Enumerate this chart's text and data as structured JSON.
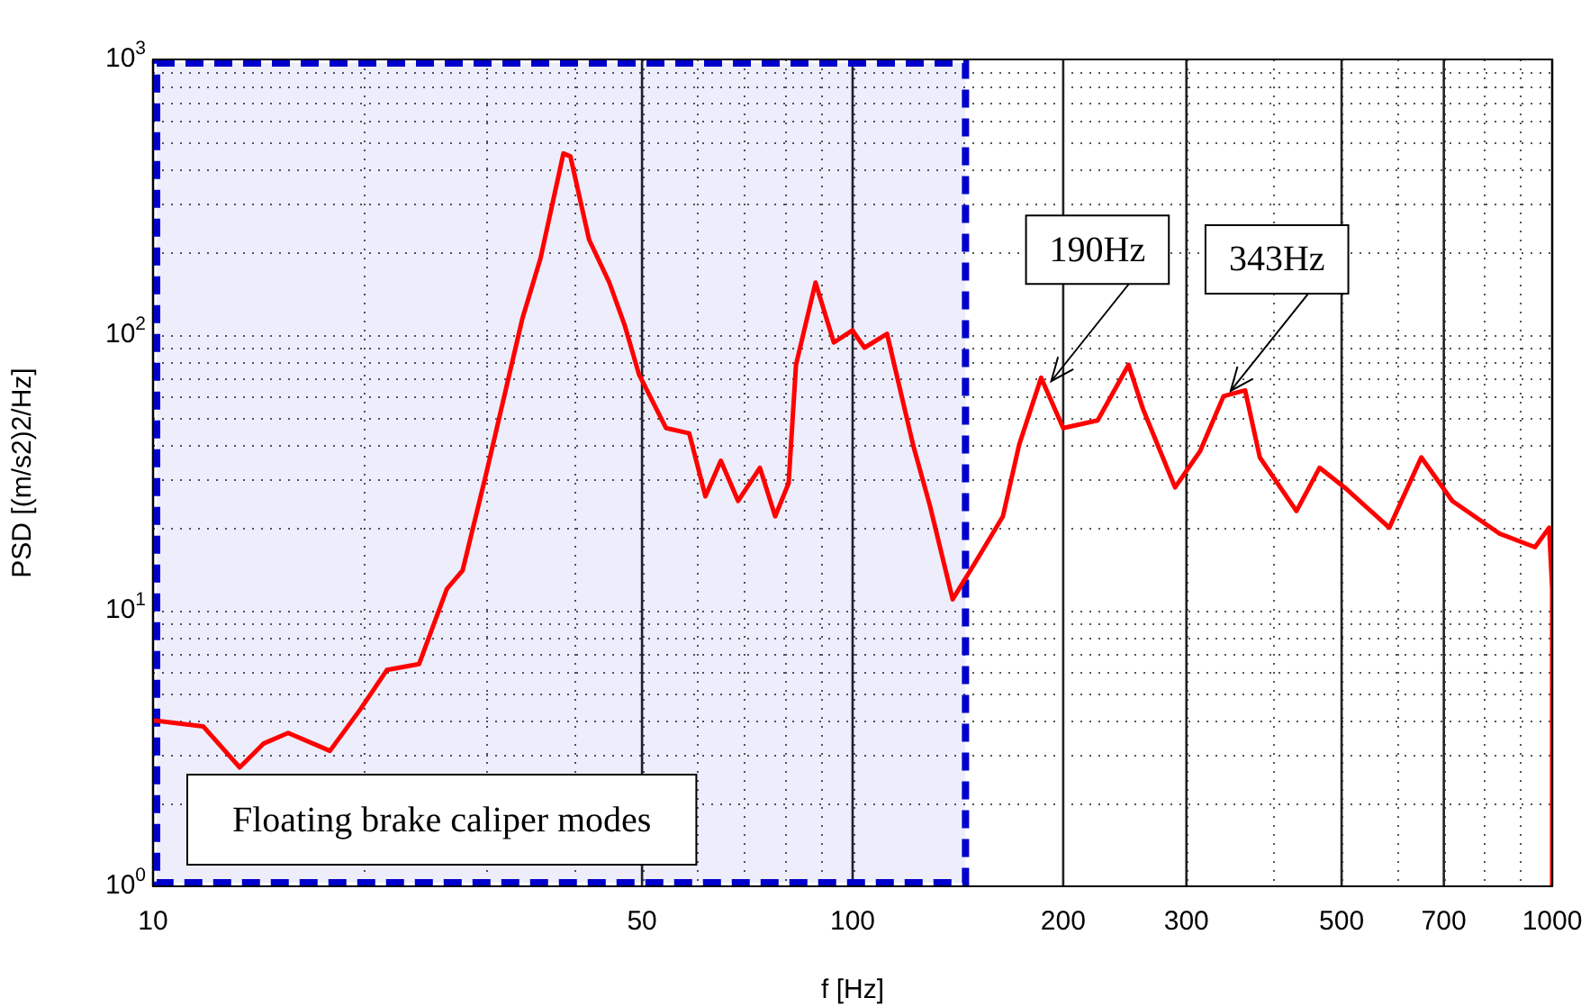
{
  "chart_data": {
    "type": "line",
    "xlabel": "f [Hz]",
    "ylabel": "PSD [(m/s2)2/Hz]",
    "log": "xy",
    "grid": true,
    "legend": false,
    "line_style": "solid",
    "marker": "none",
    "xlim": [
      10,
      1000
    ],
    "xticks": [
      10,
      50,
      100,
      200,
      300,
      500,
      700,
      1000
    ],
    "ylim": [
      1,
      1000
    ],
    "yticks": [
      {
        "value": 1,
        "label": "10$^{0}$"
      },
      {
        "value": 10,
        "label": "10$^{1}$"
      },
      {
        "value": 100,
        "label": "10$^{2}$"
      },
      {
        "value": 1000,
        "label": "10$^{3}$"
      }
    ],
    "series": [
      {
        "color": "#ff0000",
        "x": [
          10,
          11.8,
          13.3,
          14.4,
          15.6,
          17.9,
          19.8,
          21.6,
          24,
          26.3,
          27.7,
          29.9,
          33.7,
          35.8,
          38.6,
          39.5,
          42,
          44.9,
          47.2,
          49.5,
          54.1,
          58.4,
          61.6,
          64.8,
          68.6,
          73.7,
          77.5,
          81,
          83,
          88.5,
          94,
          99.9,
          104,
          112,
          122,
          129,
          139,
          151,
          164,
          173,
          186,
          200,
          224,
          248,
          260,
          289,
          314,
          339,
          364,
          382,
          431,
          465,
          505,
          585,
          650,
          720,
          842,
          945,
          990,
          1000,
          1000
        ],
        "values": [
          4,
          3.8,
          2.7,
          3.3,
          3.6,
          3.1,
          4.4,
          6.1,
          6.4,
          12,
          14,
          31,
          114,
          190,
          456,
          445,
          222,
          155,
          109,
          72,
          46,
          44,
          26,
          35,
          25,
          33,
          22,
          29,
          78,
          155,
          94,
          104,
          90,
          101,
          40,
          24,
          11,
          15.5,
          22,
          40,
          70,
          46,
          49,
          78,
          54,
          28,
          38,
          60,
          63,
          36,
          23,
          33,
          28,
          20,
          36,
          25,
          19,
          17,
          20,
          12,
          1
        ]
      }
    ],
    "bands": [
      {
        "axis": "x",
        "from": 10,
        "to": 145,
        "label": "Floating brake caliper modes",
        "color": "#0000cc"
      }
    ],
    "annotations": [
      {
        "text": "190Hz",
        "x": 190,
        "y": 65
      },
      {
        "text": "343Hz",
        "x": 343,
        "y": 60
      }
    ]
  }
}
